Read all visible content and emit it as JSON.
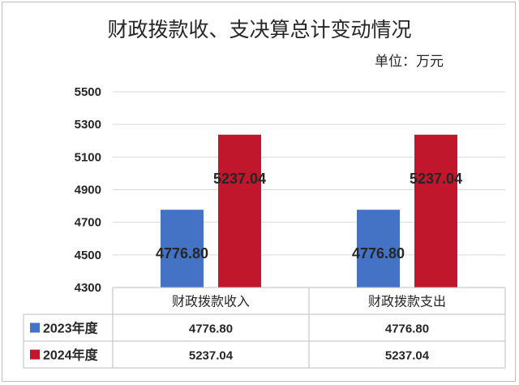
{
  "chart_data": {
    "type": "bar",
    "title": "财政拨款收、支决算总计变动情况",
    "unit_label": "单位：万元",
    "categories": [
      "财政拨款收入",
      "财政拨款支出"
    ],
    "series": [
      {
        "name": "2023年度",
        "color": "#4472c4",
        "values": [
          4776.8,
          4776.8
        ],
        "labels": [
          "4776.80",
          "4776.80"
        ]
      },
      {
        "name": "2024年度",
        "color": "#c0172c",
        "values": [
          5237.04,
          5237.04
        ],
        "labels": [
          "5237.04",
          "5237.04"
        ]
      }
    ],
    "ylim": [
      4300,
      5500
    ],
    "yticks": [
      4300,
      4500,
      4700,
      4900,
      5100,
      5300,
      5500
    ],
    "grid": true,
    "legend": "data-table"
  }
}
